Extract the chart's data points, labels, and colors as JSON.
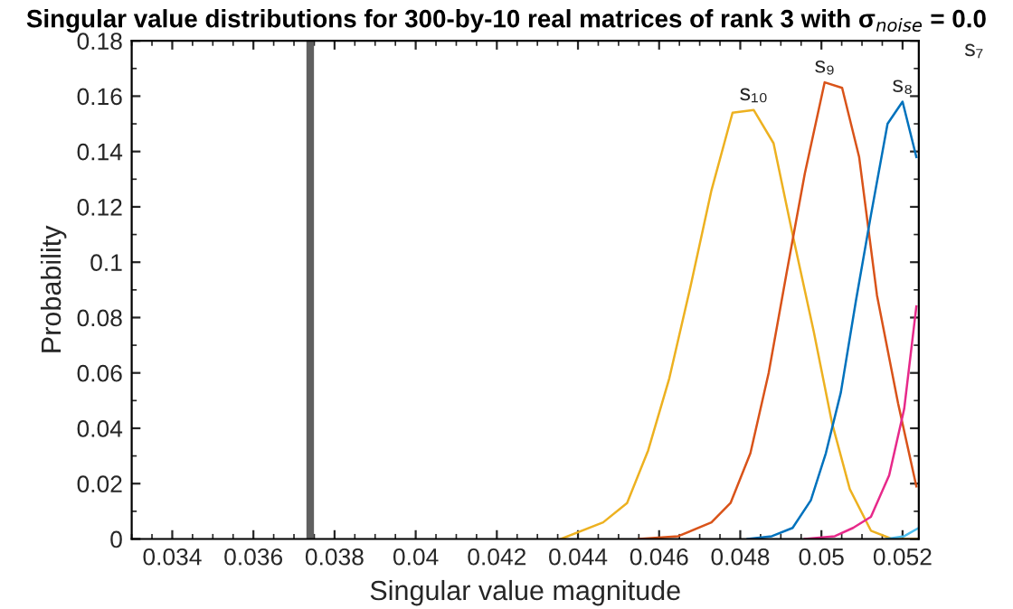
{
  "chart_data": {
    "type": "line",
    "title": "Singular value distributions for 300-by-10 real matrices of rank 3 with σ$_{noise}$ = 0.0",
    "xlabel": "Singular value magnitude",
    "ylabel": "Probability",
    "xlim": [
      0.033,
      0.0524
    ],
    "xticks": [
      0.034,
      0.036,
      0.038,
      0.04,
      0.042,
      0.044,
      0.046,
      0.048,
      0.05,
      0.052
    ],
    "ylim": [
      0,
      0.18
    ],
    "yticks": [
      0,
      0.02,
      0.04,
      0.06,
      0.08,
      0.1,
      0.12,
      0.14,
      0.16,
      0.18
    ],
    "grid": false,
    "legend": false,
    "marker": "none",
    "line_style": "solid",
    "series": [
      {
        "color": "#edb120",
        "x": [
          0.04358,
          0.04462,
          0.04521,
          0.04573,
          0.04625,
          0.04677,
          0.04729,
          0.04781,
          0.04833,
          0.04882,
          0.04929,
          0.04981,
          0.05026,
          0.0507,
          0.05122,
          0.05174,
          0.05234
        ],
        "values": [
          0,
          0.006,
          0.013,
          0.032,
          0.058,
          0.091,
          0.126,
          0.154,
          0.155,
          0.143,
          0.11,
          0.075,
          0.042,
          0.018,
          0.003,
          0,
          0
        ]
      },
      {
        "color": "#d95319",
        "x": [
          0.0455,
          0.04647,
          0.04729,
          0.04776,
          0.04825,
          0.0487,
          0.04914,
          0.04959,
          0.05008,
          0.05051,
          0.05093,
          0.05137,
          0.05189,
          0.05234
        ],
        "values": [
          0,
          0.001,
          0.006,
          0.013,
          0.031,
          0.06,
          0.096,
          0.132,
          0.165,
          0.163,
          0.138,
          0.088,
          0.049,
          0.019
        ]
      },
      {
        "color": "#0072bd",
        "x": [
          0.04818,
          0.04878,
          0.04929,
          0.04974,
          0.05011,
          0.05048,
          0.05085,
          0.05122,
          0.05163,
          0.052,
          0.05234
        ],
        "values": [
          0,
          0.001,
          0.004,
          0.014,
          0.031,
          0.053,
          0.086,
          0.117,
          0.15,
          0.158,
          0.138
        ]
      },
      {
        "color": "#e7298a",
        "x": [
          0.04959,
          0.05033,
          0.05078,
          0.05122,
          0.05167,
          0.05204,
          0.05234
        ],
        "values": [
          0,
          0.001,
          0.004,
          0.008,
          0.023,
          0.047,
          0.084
        ]
      },
      {
        "color": "#4dbeee",
        "x": [
          0.0516,
          0.05204,
          0.0524
        ],
        "values": [
          0,
          0.001,
          0.004
        ]
      }
    ],
    "ref_lines": [
      {
        "axis": "x",
        "value": 0.0374,
        "color": "#606060"
      }
    ],
    "annotations": [
      "s₁₀",
      "s₉",
      "s₈",
      "s₇"
    ]
  }
}
